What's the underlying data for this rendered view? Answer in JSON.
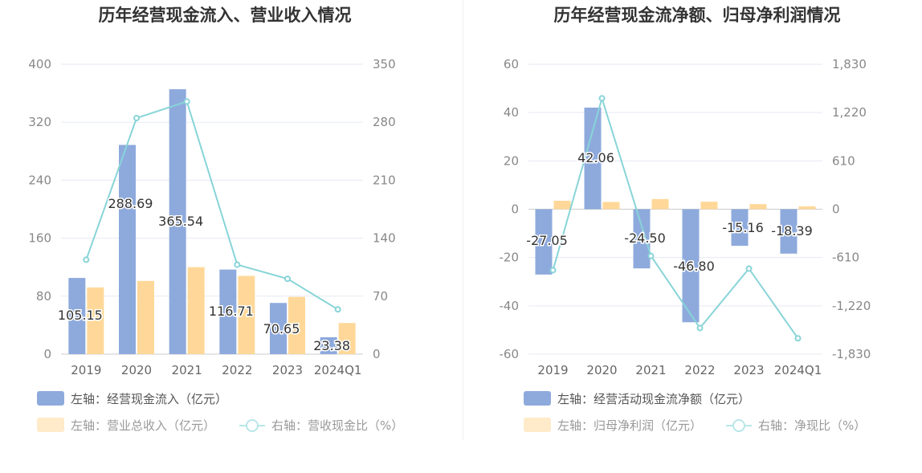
{
  "chart_data": [
    {
      "type": "bar",
      "title": "历年经营现金流入、营业收入情况",
      "categories": [
        "2019",
        "2020",
        "2021",
        "2022",
        "2023",
        "2024Q1"
      ],
      "series": [
        {
          "name": "左轴：经营现金流入（亿元）",
          "type": "bar",
          "axis": "left",
          "color": "#8eaadc",
          "values": [
            105.15,
            288.69,
            365.54,
            116.71,
            70.65,
            23.38
          ],
          "labels_shown": true
        },
        {
          "name": "左轴：营业总收入（亿元）",
          "type": "bar",
          "axis": "left",
          "color": "#ffd899",
          "values": [
            92,
            101,
            120,
            108,
            79,
            43
          ],
          "labels_shown": false
        },
        {
          "name": "右轴：营收现金比（%）",
          "type": "line",
          "axis": "right",
          "color": "#88d4d8",
          "values": [
            114,
            285,
            305,
            108,
            91,
            54
          ],
          "labels_shown": false
        }
      ],
      "left_axis": {
        "min": 0,
        "max": 400,
        "ticks": [
          "0",
          "80",
          "160",
          "240",
          "320",
          "400"
        ]
      },
      "right_axis": {
        "min": 0,
        "max": 350,
        "ticks": [
          "0",
          "70",
          "140",
          "210",
          "280",
          "350"
        ]
      },
      "legend_placement": "bottom-left",
      "grid": true
    },
    {
      "type": "bar",
      "title": "历年经营现金流净额、归母净利润情况",
      "categories": [
        "2019",
        "2020",
        "2021",
        "2022",
        "2023",
        "2024Q1"
      ],
      "series": [
        {
          "name": "左轴：经营活动现金流净额（亿元）",
          "type": "bar",
          "axis": "left",
          "color": "#8eaadc",
          "values": [
            -27.05,
            42.06,
            -24.5,
            -46.8,
            -15.16,
            -18.39
          ],
          "display_labels": [
            "-27.05",
            "42.06",
            "-24.50",
            "-46.80",
            "-15.16",
            "-18.39"
          ],
          "labels_shown": true
        },
        {
          "name": "左轴：归母净利润（亿元）",
          "type": "bar",
          "axis": "left",
          "color": "#ffd899",
          "values": [
            3.5,
            3.0,
            4.2,
            3.1,
            2.1,
            1.2
          ],
          "labels_shown": false
        },
        {
          "name": "右轴：净现比（%）",
          "type": "line",
          "axis": "right",
          "color": "#88d4d8",
          "values": [
            -770,
            1400,
            -590,
            -1500,
            -750,
            -1630
          ],
          "labels_shown": false
        }
      ],
      "left_axis": {
        "min": -60,
        "max": 60,
        "ticks": [
          "-60",
          "-40",
          "-20",
          "0",
          "20",
          "40",
          "60"
        ]
      },
      "right_axis": {
        "min": -1830,
        "max": 1830,
        "ticks": [
          "-1,830",
          "-1,220",
          "-610",
          "0",
          "610",
          "1,220",
          "1,830"
        ]
      },
      "legend_placement": "bottom-left",
      "grid": true
    }
  ]
}
